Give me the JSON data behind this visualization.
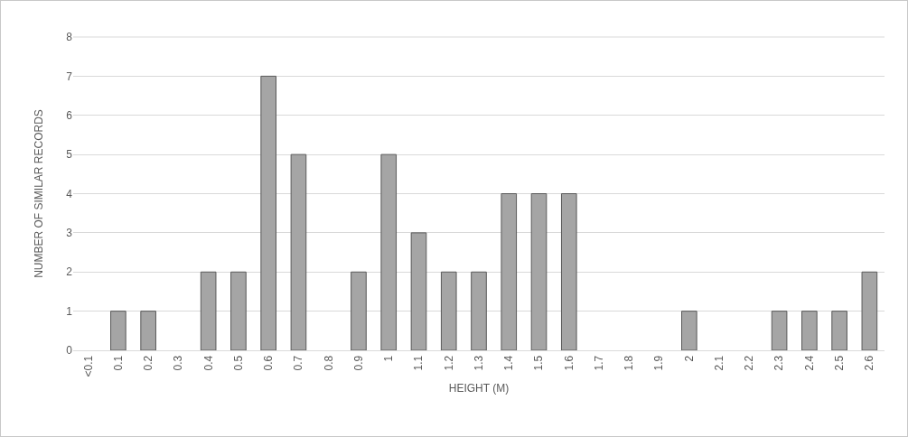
{
  "chart_data": {
    "type": "bar",
    "xlabel": "HEIGHT (M)",
    "ylabel": "NUMBER OF SIMILAR RECORDS",
    "categories": [
      "<0.1",
      "0.1",
      "0.2",
      "0.3",
      "0.4",
      "0.5",
      "0.6",
      "0.7",
      "0.8",
      "0.9",
      "1",
      "1.1",
      "1.2",
      "1.3",
      "1.4",
      "1.5",
      "1.6",
      "1.7",
      "1.8",
      "1.9",
      "2",
      "2.1",
      "2.2",
      "2.3",
      "2.4",
      "2.5",
      "2.6"
    ],
    "values": [
      0,
      1,
      1,
      0,
      2,
      2,
      7,
      5,
      0,
      2,
      5,
      3,
      2,
      2,
      4,
      4,
      4,
      0,
      0,
      0,
      1,
      0,
      0,
      1,
      1,
      1,
      2
    ],
    "color": "#a5a5a5",
    "ylim": [
      0,
      8
    ],
    "yticks": [
      0,
      1,
      2,
      3,
      4,
      5,
      6,
      7,
      8
    ],
    "grid": "y"
  }
}
